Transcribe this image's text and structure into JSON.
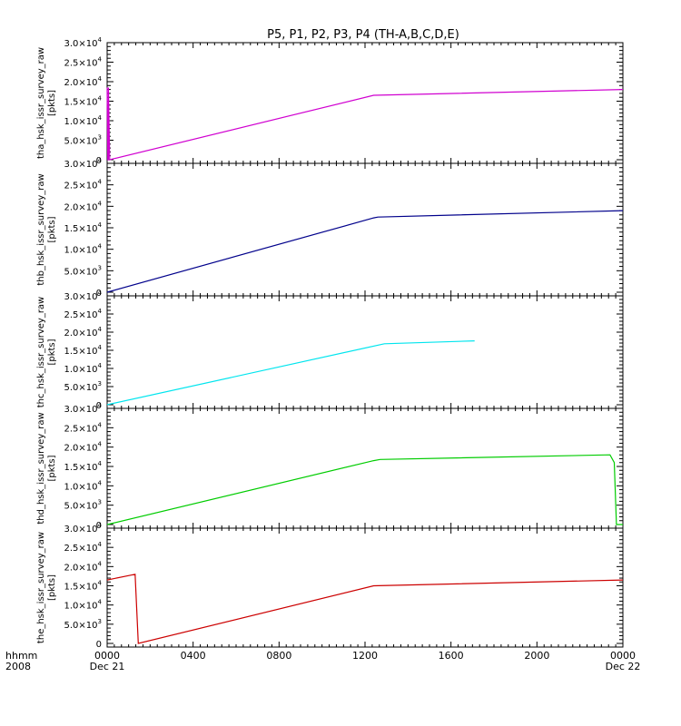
{
  "title": "P5, P1, P2, P3, P4 (TH-A,B,C,D,E)",
  "time_axis": {
    "label": "hhmm",
    "year": "2008",
    "range_hours": [
      0,
      24
    ],
    "ticks": [
      {
        "hour": 0,
        "label": "0000",
        "sub": "Dec 21"
      },
      {
        "hour": 4,
        "label": "0400",
        "sub": ""
      },
      {
        "hour": 8,
        "label": "0800",
        "sub": ""
      },
      {
        "hour": 12,
        "label": "1200",
        "sub": ""
      },
      {
        "hour": 16,
        "label": "1600",
        "sub": ""
      },
      {
        "hour": 20,
        "label": "2000",
        "sub": ""
      },
      {
        "hour": 24,
        "label": "0000",
        "sub": "Dec 22"
      }
    ]
  },
  "y_ticks": [
    {
      "value": 0,
      "mantissa": "0",
      "exp": ""
    },
    {
      "value": 5000,
      "mantissa": "5.0×10",
      "exp": "3"
    },
    {
      "value": 10000,
      "mantissa": "1.0×10",
      "exp": "4"
    },
    {
      "value": 15000,
      "mantissa": "1.5×10",
      "exp": "4"
    },
    {
      "value": 20000,
      "mantissa": "2.0×10",
      "exp": "4"
    },
    {
      "value": 25000,
      "mantissa": "2.5×10",
      "exp": "4"
    },
    {
      "value": 30000,
      "mantissa": "3.0×10",
      "exp": "4"
    }
  ],
  "chart_data": [
    {
      "type": "line",
      "ylabel": "tha_hsk_issr_survey_raw",
      "yunit": "[pkts]",
      "ylim": [
        0,
        30000
      ],
      "series": [
        {
          "color": "#d000d0",
          "x": [
            0.0,
            0.03,
            0.06,
            0.06,
            0.12,
            12.4,
            24.0
          ],
          "y": [
            18500,
            0,
            0,
            18500,
            0,
            16500,
            18000
          ]
        }
      ]
    },
    {
      "type": "line",
      "ylabel": "thb_hsk_issr_survey_raw",
      "yunit": "[pkts]",
      "ylim": [
        0,
        30000
      ],
      "series": [
        {
          "color": "#00008b",
          "x": [
            0.0,
            12.4,
            12.6,
            24.0
          ],
          "y": [
            0,
            17300,
            17500,
            19000
          ]
        }
      ]
    },
    {
      "type": "line",
      "ylabel": "thc_hsk_issr_survey_raw",
      "yunit": "[pkts]",
      "ylim": [
        0,
        30000
      ],
      "series": [
        {
          "color": "#00e5ee",
          "x": [
            0.0,
            12.9,
            17.1
          ],
          "y": [
            0,
            16800,
            17600
          ]
        }
      ]
    },
    {
      "type": "line",
      "ylabel": "thd_hsk_issr_survey_raw",
      "yunit": "[pkts]",
      "ylim": [
        0,
        30000
      ],
      "series": [
        {
          "color": "#00cc00",
          "x": [
            0.0,
            12.4,
            12.7,
            23.4,
            23.6,
            23.7,
            24.0
          ],
          "y": [
            0,
            16500,
            16800,
            18000,
            16000,
            0,
            0
          ]
        }
      ]
    },
    {
      "type": "line",
      "ylabel": "the_hsk_issr_survey_raw",
      "yunit": "[pkts]",
      "ylim": [
        0,
        30000
      ],
      "series": [
        {
          "color": "#cc0000",
          "x": [
            0.0,
            1.3,
            1.45,
            12.4,
            24.0
          ],
          "y": [
            16500,
            18000,
            0,
            15000,
            16500
          ]
        }
      ]
    }
  ]
}
